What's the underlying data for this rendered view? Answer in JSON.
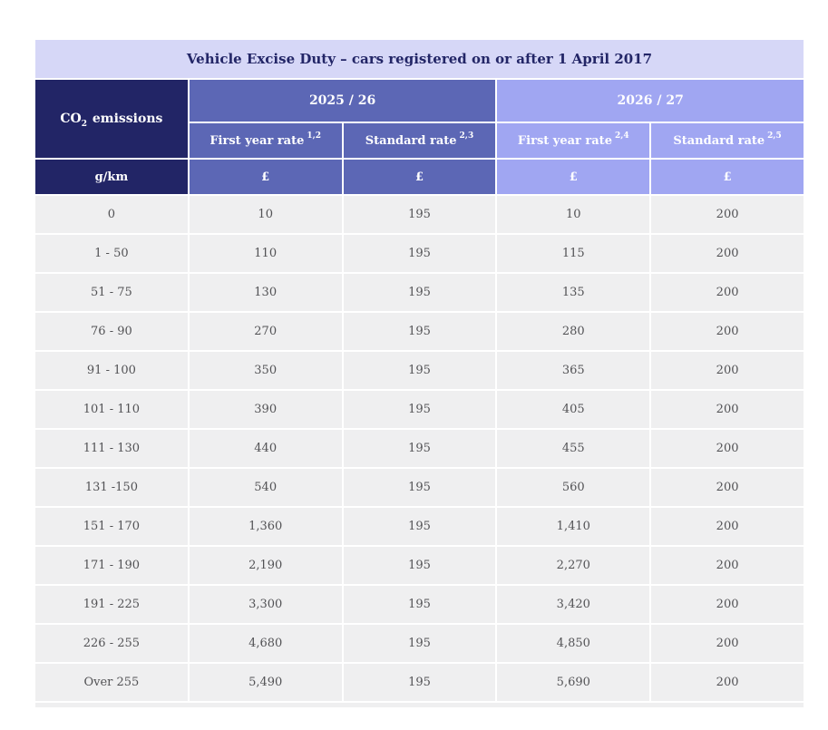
{
  "title": "Vehicle Excise Duty – cars registered on or after 1 April 2017",
  "header": {
    "emissions": {
      "prefix": "CO",
      "sub": "2",
      "suffix": "emissions"
    },
    "year_groups": [
      {
        "label": "2025 / 26"
      },
      {
        "label": "2026 / 27"
      }
    ],
    "sub_columns": [
      {
        "label": "First year rate",
        "sup": "1,2"
      },
      {
        "label": "Standard rate",
        "sup": "2,3"
      },
      {
        "label": "First year rate",
        "sup": "2,4"
      },
      {
        "label": "Standard rate",
        "sup": "2,5"
      }
    ],
    "units_row": {
      "emissions_unit": "g/km",
      "currency": [
        "£",
        "£",
        "£",
        "£"
      ]
    }
  },
  "colors": {
    "title_bar": "#d6d7f7",
    "navy": "#222566",
    "mid_blue": "#5c67b5",
    "periwinkle": "#a0a6f2",
    "row_grey": "#efeff0",
    "data_text": "#525255",
    "title_text": "#232667"
  },
  "chart_data": {
    "type": "table",
    "title": "Vehicle Excise Duty – cars registered on or after 1 April 2017",
    "columns": [
      "CO2 emissions (g/km)",
      "2025/26 First year rate (£)",
      "2025/26 Standard rate (£)",
      "2026/27 First year rate (£)",
      "2026/27 Standard rate (£)"
    ],
    "rows": [
      [
        "0",
        "10",
        "195",
        "10",
        "200"
      ],
      [
        "1 - 50",
        "110",
        "195",
        "115",
        "200"
      ],
      [
        "51 - 75",
        "130",
        "195",
        "135",
        "200"
      ],
      [
        "76 - 90",
        "270",
        "195",
        "280",
        "200"
      ],
      [
        "91 - 100",
        "350",
        "195",
        "365",
        "200"
      ],
      [
        "101 - 110",
        "390",
        "195",
        "405",
        "200"
      ],
      [
        "111 - 130",
        "440",
        "195",
        "455",
        "200"
      ],
      [
        "131 -150",
        "540",
        "195",
        "560",
        "200"
      ],
      [
        "151 - 170",
        "1,360",
        "195",
        "1,410",
        "200"
      ],
      [
        "171 - 190",
        "2,190",
        "195",
        "2,270",
        "200"
      ],
      [
        "191 - 225",
        "3,300",
        "195",
        "3,420",
        "200"
      ],
      [
        "226 - 255",
        "4,680",
        "195",
        "4,850",
        "200"
      ],
      [
        "Over 255",
        "5,490",
        "195",
        "5,690",
        "200"
      ]
    ]
  }
}
